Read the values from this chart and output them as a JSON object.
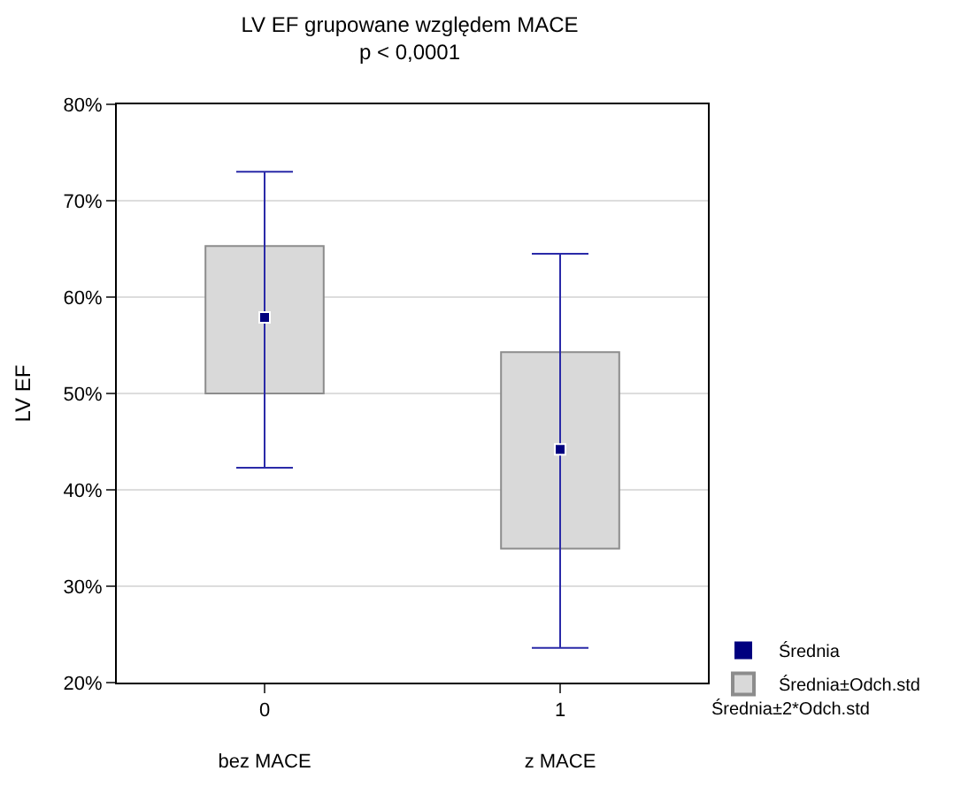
{
  "chart_data": {
    "type": "bar",
    "title": "LV EF grupowane względem MACE",
    "subtitle": "p < 0,0001",
    "ylabel": "LV EF",
    "categories": [
      "0\nbez MACE",
      "1\nz MACE"
    ],
    "series": [
      {
        "name": "Średnia±Odch.std",
        "color": "#d9d9d9",
        "base": [
          50.0,
          33.9
        ],
        "values": [
          15.3,
          20.4
        ]
      },
      {
        "name": "Średnia",
        "type": "scatter",
        "marker": "square",
        "color": "#00007f",
        "values": [
          57.9,
          44.2
        ],
        "errors": [
          [
            42.3,
            73.0
          ],
          [
            23.6,
            64.5
          ]
        ]
      }
    ],
    "annotations": [
      "Średnia±2*Odch.std"
    ],
    "ylim": [
      20,
      80
    ],
    "yticks": [
      {
        "value": 20,
        "label": "20%"
      },
      {
        "value": 30,
        "label": "30%"
      },
      {
        "value": 40,
        "label": "40%"
      },
      {
        "value": 50,
        "label": "50%"
      },
      {
        "value": 60,
        "label": "60%"
      },
      {
        "value": 70,
        "label": "70%"
      },
      {
        "value": 80,
        "label": "80%"
      }
    ],
    "grid": "y",
    "legend": "bottom right"
  }
}
